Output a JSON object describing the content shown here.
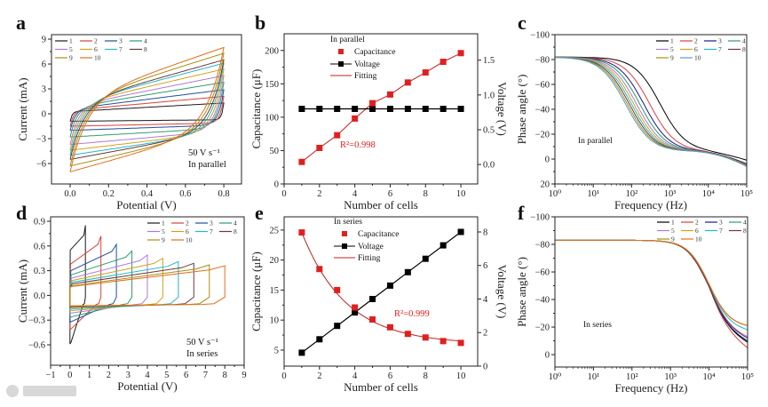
{
  "figure": {
    "watermark": "大数跨境"
  },
  "colors": {
    "cv": [
      "#1a1a1a",
      "#d9413a",
      "#1f4e9e",
      "#2e9b6a",
      "#b07ad6",
      "#d4a017",
      "#22b8c8",
      "#6b3a3a",
      "#a89010",
      "#e07020"
    ],
    "bode_c": [
      "#000000",
      "#d9413a",
      "#1a1a90",
      "#2e9b6a",
      "#b07ad6",
      "#d4a017",
      "#22b8c8",
      "#6b3a3a",
      "#a89010",
      "#5a9ac8"
    ],
    "bode_f": [
      "#000000",
      "#d9413a",
      "#1a1a90",
      "#2e9b6a",
      "#b07ad6",
      "#d4a017",
      "#22b8c8",
      "#6b3a3a",
      "#a89010",
      "#e07020"
    ],
    "capacitance": "#e02020",
    "voltage": "#000000",
    "fitting": "#c02020"
  },
  "chart_data": [
    {
      "id": "a",
      "panel_label": "a",
      "type": "line",
      "xlabel": "Potential (V)",
      "ylabel": "Current (mA)",
      "xlim": [
        -0.097,
        0.892
      ],
      "ylim": [
        -8.46,
        9.54
      ],
      "xticks": [
        0,
        0.2,
        0.4,
        0.6,
        0.8
      ],
      "xtick_labels": [
        "0.0",
        "0.2",
        "0.4",
        "0.6",
        "0.8"
      ],
      "yticks": [
        -6,
        -3,
        0,
        3,
        6,
        9
      ],
      "ytick_labels": [
        "−6",
        "−3",
        "0",
        "3",
        "6",
        "9"
      ],
      "annotations": [
        "50 V s⁻¹",
        "In parallel"
      ],
      "legend": [
        "1",
        "2",
        "3",
        "4",
        "5",
        "6",
        "7",
        "8",
        "9",
        "10"
      ],
      "series": [
        {
          "name": "1",
          "max_potential": 0.8,
          "current_at_max": 1.3,
          "current_at_zero": -0.9
        },
        {
          "name": "2",
          "max_potential": 0.8,
          "current_at_max": 2.1,
          "current_at_zero": -1.5
        },
        {
          "name": "3",
          "max_potential": 0.8,
          "current_at_max": 2.9,
          "current_at_zero": -2.0
        },
        {
          "name": "4",
          "max_potential": 0.8,
          "current_at_max": 3.8,
          "current_at_zero": -2.8
        },
        {
          "name": "5",
          "max_potential": 0.8,
          "current_at_max": 4.6,
          "current_at_zero": -3.7
        },
        {
          "name": "6",
          "max_potential": 0.8,
          "current_at_max": 5.4,
          "current_at_zero": -4.4
        },
        {
          "name": "7",
          "max_potential": 0.8,
          "current_at_max": 6.1,
          "current_at_zero": -5.0
        },
        {
          "name": "8",
          "max_potential": 0.8,
          "current_at_max": 6.5,
          "current_at_zero": -5.5
        },
        {
          "name": "9",
          "max_potential": 0.8,
          "current_at_max": 7.3,
          "current_at_zero": -6.3
        },
        {
          "name": "10",
          "max_potential": 0.8,
          "current_at_max": 8.0,
          "current_at_zero": -7.0
        }
      ]
    },
    {
      "id": "b",
      "panel_label": "b",
      "type": "scatter",
      "xlabel": "Number of cells",
      "ylabel": "Capacitance (μF)",
      "y2label": "Voltage (V)",
      "xlim": [
        0,
        10.95
      ],
      "ylim": [
        0,
        225
      ],
      "y2lim": [
        -0.28,
        1.88
      ],
      "xticks": [
        0,
        2,
        4,
        6,
        8,
        10
      ],
      "xtick_labels": [
        "0",
        "2",
        "4",
        "6",
        "8",
        "10"
      ],
      "yticks": [
        0,
        50,
        100,
        150,
        200
      ],
      "ytick_labels": [
        "0",
        "50",
        "100",
        "150",
        "200"
      ],
      "y2ticks": [
        0,
        0.5,
        1,
        1.5
      ],
      "y2tick_labels": [
        "0.0",
        "0.5",
        "1.0",
        "1.5"
      ],
      "legend_title": "In parallel",
      "legend": [
        "Capacitance",
        "Voltage",
        "Fitting"
      ],
      "annotation": "R²=0.998",
      "x": [
        1,
        2,
        3,
        4,
        5,
        6,
        7,
        8,
        9,
        10
      ],
      "series": [
        {
          "name": "Capacitance",
          "axis": "left",
          "values": [
            33,
            54,
            73,
            98,
            121,
            134,
            152,
            167,
            183,
            196
          ]
        },
        {
          "name": "Voltage",
          "axis": "right",
          "values": [
            0.8,
            0.8,
            0.8,
            0.8,
            0.8,
            0.8,
            0.8,
            0.8,
            0.8,
            0.8
          ]
        }
      ]
    },
    {
      "id": "c",
      "panel_label": "c",
      "type": "line",
      "xlabel": "Frequency (Hz)",
      "ylabel": "Phase angle (°)",
      "xscale": "log",
      "xlim_log10": [
        0,
        5
      ],
      "ylim": [
        20,
        -100
      ],
      "xticks_log10": [
        0,
        1,
        2,
        3,
        4,
        5
      ],
      "xtick_labels": [
        "10⁰",
        "10¹",
        "10²",
        "10³",
        "10⁴",
        "10⁵"
      ],
      "yticks": [
        -100,
        -80,
        -60,
        -40,
        -20,
        0,
        20
      ],
      "ytick_labels": [
        "−100",
        "−80",
        "−60",
        "−40",
        "−20",
        "0",
        "20"
      ],
      "annotation": "In parallel",
      "legend": [
        "1",
        "2",
        "3",
        "4",
        "5",
        "6",
        "7",
        "8",
        "9",
        "10"
      ],
      "series": [
        {
          "name": "1",
          "corner_frequency_hz": 560,
          "phase_at_1e5": 1
        },
        {
          "name": "2",
          "corner_frequency_hz": 300,
          "phase_at_1e5": 4
        },
        {
          "name": "3",
          "corner_frequency_hz": 210,
          "phase_at_1e5": 4
        },
        {
          "name": "4",
          "corner_frequency_hz": 165,
          "phase_at_1e5": 5
        },
        {
          "name": "5",
          "corner_frequency_hz": 135,
          "phase_at_1e5": 5
        },
        {
          "name": "6",
          "corner_frequency_hz": 115,
          "phase_at_1e5": 5
        },
        {
          "name": "7",
          "corner_frequency_hz": 100,
          "phase_at_1e5": 5
        },
        {
          "name": "8",
          "corner_frequency_hz": 88,
          "phase_at_1e5": 5
        },
        {
          "name": "9",
          "corner_frequency_hz": 78,
          "phase_at_1e5": 5
        },
        {
          "name": "10",
          "corner_frequency_hz": 70,
          "phase_at_1e5": 6
        }
      ]
    },
    {
      "id": "d",
      "panel_label": "d",
      "type": "line",
      "xlabel": "Potential (V)",
      "ylabel": "Current  (mA)",
      "xlim": [
        -1,
        9
      ],
      "ylim": [
        -0.848,
        0.954
      ],
      "xticks": [
        -1,
        0,
        1,
        2,
        3,
        4,
        5,
        6,
        7,
        8,
        9
      ],
      "xtick_labels": [
        "−1",
        "0",
        "1",
        "2",
        "3",
        "4",
        "5",
        "6",
        "7",
        "8",
        "9"
      ],
      "yticks": [
        -0.6,
        -0.3,
        0,
        0.3,
        0.6,
        0.9
      ],
      "ytick_labels": [
        "−0.6",
        "−0.3",
        "0.0",
        "0.3",
        "0.6",
        "0.9"
      ],
      "annotations": [
        "50 V s⁻¹",
        "In series"
      ],
      "legend": [
        "1",
        "2",
        "3",
        "4",
        "5",
        "6",
        "7",
        "8",
        "9",
        "10"
      ],
      "series": [
        {
          "name": "1",
          "max_potential": 0.8,
          "current_at_max": 0.85,
          "start_current": 0.55,
          "current_at_zero": -0.59
        },
        {
          "name": "2",
          "max_potential": 1.6,
          "current_at_max": 0.72,
          "start_current": 0.38,
          "current_at_zero": -0.42
        },
        {
          "name": "3",
          "max_potential": 2.4,
          "current_at_max": 0.62,
          "start_current": 0.3,
          "current_at_zero": -0.33
        },
        {
          "name": "4",
          "max_potential": 3.2,
          "current_at_max": 0.54,
          "start_current": 0.25,
          "current_at_zero": -0.27
        },
        {
          "name": "5",
          "max_potential": 4.0,
          "current_at_max": 0.49,
          "start_current": 0.21,
          "current_at_zero": -0.22
        },
        {
          "name": "6",
          "max_potential": 4.8,
          "current_at_max": 0.45,
          "start_current": 0.18,
          "current_at_zero": -0.19
        },
        {
          "name": "7",
          "max_potential": 5.6,
          "current_at_max": 0.41,
          "start_current": 0.16,
          "current_at_zero": -0.17
        },
        {
          "name": "8",
          "max_potential": 6.4,
          "current_at_max": 0.39,
          "start_current": 0.14,
          "current_at_zero": -0.15
        },
        {
          "name": "9",
          "max_potential": 7.2,
          "current_at_max": 0.37,
          "start_current": 0.12,
          "current_at_zero": -0.14
        },
        {
          "name": "10",
          "max_potential": 8.0,
          "current_at_max": 0.36,
          "start_current": 0.11,
          "current_at_zero": -0.13
        }
      ]
    },
    {
      "id": "e",
      "panel_label": "e",
      "type": "scatter",
      "xlabel": "Number of cells",
      "ylabel": "Capacitance (μF)",
      "y2label": "Voltage (V)",
      "xlim": [
        0,
        10.95
      ],
      "ylim": [
        2.33,
        27.2
      ],
      "y2lim": [
        0,
        8.9
      ],
      "xticks": [
        0,
        2,
        4,
        6,
        8,
        10
      ],
      "xtick_labels": [
        "0",
        "2",
        "4",
        "6",
        "8",
        "10"
      ],
      "yticks": [
        5,
        10,
        15,
        20,
        25
      ],
      "ytick_labels": [
        "5",
        "10",
        "15",
        "20",
        "25"
      ],
      "y2ticks": [
        0,
        2,
        4,
        6,
        8
      ],
      "y2tick_labels": [
        "0",
        "2",
        "4",
        "6",
        "8"
      ],
      "legend_title": "In series",
      "legend": [
        "Capacitance",
        "Voltage",
        "Fitting"
      ],
      "annotation": "R²=0.999",
      "x": [
        1,
        2,
        3,
        4,
        5,
        6,
        7,
        8,
        9,
        10
      ],
      "series": [
        {
          "name": "Capacitance",
          "axis": "left",
          "values": [
            24.6,
            18.5,
            15.0,
            12.1,
            10.1,
            8.8,
            7.7,
            7.1,
            6.5,
            6.2
          ]
        },
        {
          "name": "Voltage",
          "axis": "right",
          "values": [
            0.8,
            1.6,
            2.4,
            3.2,
            4.0,
            4.8,
            5.6,
            6.4,
            7.2,
            8.0
          ]
        }
      ]
    },
    {
      "id": "f",
      "panel_label": "f",
      "type": "line",
      "xlabel": "Frequency (Hz)",
      "ylabel": "Phase angle (°)",
      "xscale": "log",
      "xlim_log10": [
        0,
        5
      ],
      "ylim": [
        9,
        -100
      ],
      "xticks_log10": [
        0,
        1,
        2,
        3,
        4,
        5
      ],
      "xtick_labels": [
        "10⁰",
        "10¹",
        "10²",
        "10³",
        "10⁴",
        "10⁵"
      ],
      "yticks": [
        -100,
        -80,
        -60,
        -40,
        -20,
        0
      ],
      "ytick_labels": [
        "−100",
        "−80",
        "−60",
        "−40",
        "−20",
        "0"
      ],
      "annotation": "In series",
      "legend": [
        "1",
        "2",
        "3",
        "4",
        "5",
        "6",
        "7",
        "8",
        "9",
        "10"
      ],
      "series": [
        {
          "name": "1",
          "corner_frequency_hz": 9000,
          "phase_at_1e5": -9
        },
        {
          "name": "2",
          "corner_frequency_hz": 9000,
          "phase_at_1e5": -5
        },
        {
          "name": "3",
          "corner_frequency_hz": 9000,
          "phase_at_1e5": -10
        },
        {
          "name": "4",
          "corner_frequency_hz": 9200,
          "phase_at_1e5": -12
        },
        {
          "name": "5",
          "corner_frequency_hz": 9200,
          "phase_at_1e5": -13
        },
        {
          "name": "6",
          "corner_frequency_hz": 9600,
          "phase_at_1e5": -21
        },
        {
          "name": "7",
          "corner_frequency_hz": 9400,
          "phase_at_1e5": -18
        },
        {
          "name": "8",
          "corner_frequency_hz": 9200,
          "phase_at_1e5": -12
        },
        {
          "name": "9",
          "corner_frequency_hz": 9600,
          "phase_at_1e5": -21
        },
        {
          "name": "10",
          "corner_frequency_hz": 9700,
          "phase_at_1e5": -21
        }
      ]
    }
  ]
}
